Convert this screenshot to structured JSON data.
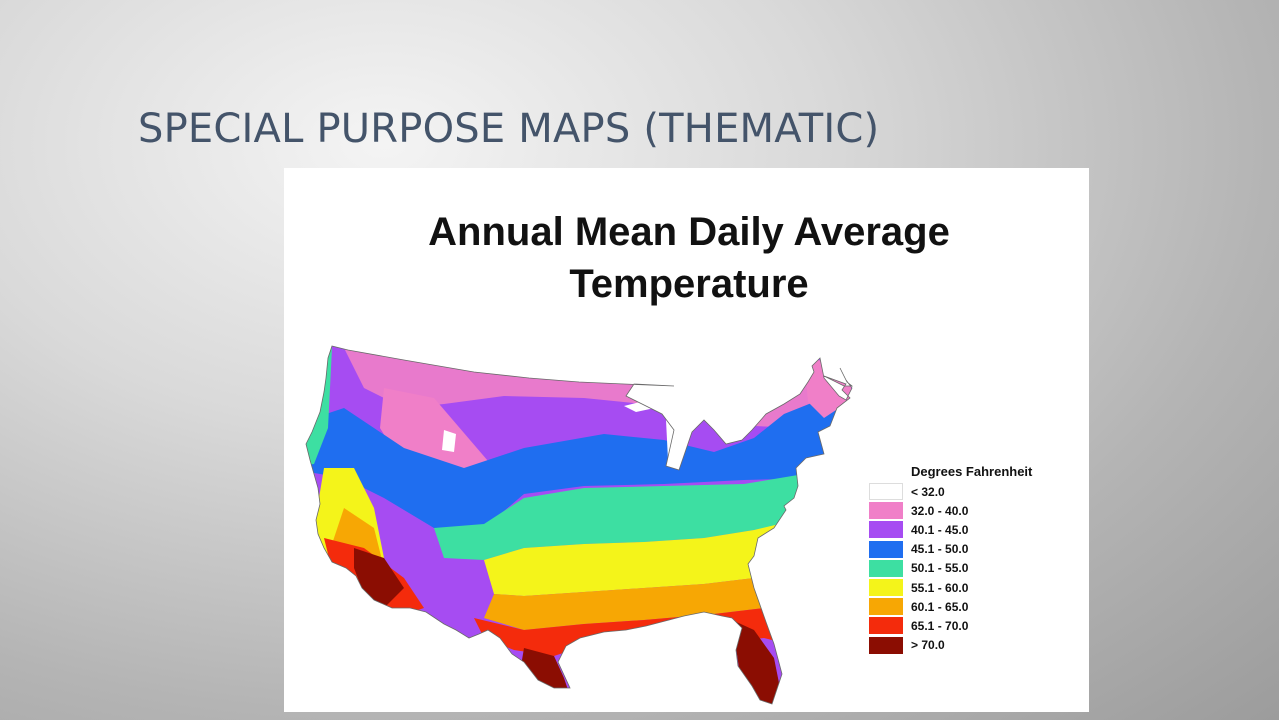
{
  "slide": {
    "title": "SPECIAL PURPOSE MAPS (THEMATIC)"
  },
  "map": {
    "title_line1": "Annual Mean Daily Average",
    "title_line2": "Temperature",
    "legend": {
      "title": "Degrees Fahrenheit",
      "items": [
        {
          "label": "< 32.0",
          "color": "#ffffff"
        },
        {
          "label": "32.0 - 40.0",
          "color": "#f07fc8"
        },
        {
          "label": "40.1 - 45.0",
          "color": "#a64cf2"
        },
        {
          "label": "45.1 - 50.0",
          "color": "#1f6ef0"
        },
        {
          "label": "50.1 - 55.0",
          "color": "#3ddfa2"
        },
        {
          "label": "55.1 - 60.0",
          "color": "#f4f41a"
        },
        {
          "label": "60.1 - 65.0",
          "color": "#f7a704"
        },
        {
          "label": "65.1 - 70.0",
          "color": "#f42b0c"
        },
        {
          "label": "> 70.0",
          "color": "#8b0d02"
        }
      ]
    }
  }
}
